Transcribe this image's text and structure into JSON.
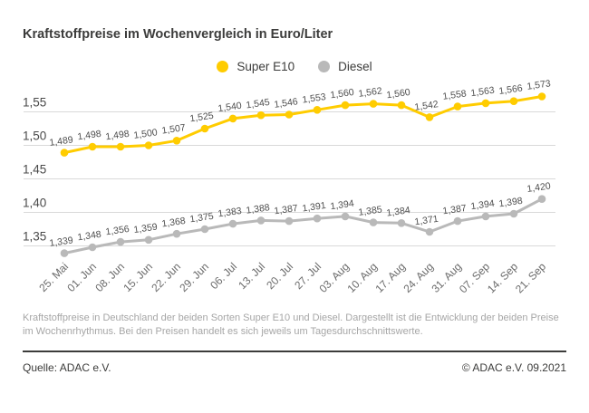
{
  "title": "Kraftstoffpreise im Wochenvergleich in Euro/Liter",
  "legend": [
    {
      "label": "Super E10",
      "color": "#FFCC00"
    },
    {
      "label": "Diesel",
      "color": "#B9B9B9"
    }
  ],
  "chart_data": {
    "type": "line",
    "title": "Kraftstoffpreise im Wochenvergleich in Euro/Liter",
    "unit": "Euro/Liter",
    "x": [
      "25. Mai",
      "01. Jun",
      "08. Jun",
      "15. Jun",
      "22. Jun",
      "29. Jun",
      "06. Jul",
      "13. Jul",
      "20. Jul",
      "27. Jul",
      "03. Aug",
      "10. Aug",
      "17. Aug",
      "24. Aug",
      "31. Aug",
      "07. Sep",
      "14. Sep",
      "21. Sep"
    ],
    "series": [
      {
        "name": "Super E10",
        "color": "#FFCC00",
        "values": [
          1.489,
          1.498,
          1.498,
          1.5,
          1.507,
          1.525,
          1.54,
          1.545,
          1.546,
          1.553,
          1.56,
          1.562,
          1.56,
          1.542,
          1.558,
          1.563,
          1.566,
          1.573
        ]
      },
      {
        "name": "Diesel",
        "color": "#B9B9B9",
        "values": [
          1.339,
          1.348,
          1.356,
          1.359,
          1.368,
          1.375,
          1.383,
          1.388,
          1.387,
          1.391,
          1.394,
          1.385,
          1.384,
          1.371,
          1.387,
          1.394,
          1.398,
          1.42
        ]
      }
    ],
    "yticks": [
      {
        "value": 1.55,
        "label": "1,55"
      },
      {
        "value": 1.5,
        "label": "1,50"
      },
      {
        "value": 1.45,
        "label": "1,45"
      },
      {
        "value": 1.4,
        "label": "1,40"
      },
      {
        "value": 1.35,
        "label": "1,35"
      }
    ],
    "ylim": [
      1.33,
      1.58
    ],
    "grid": "horizontal",
    "legend_position": "top-center",
    "value_labels": true,
    "decimal_separator": ","
  },
  "caption": "Kraftstoffpreise in Deutschland der beiden Sorten Super E10 und Diesel. Dargestellt ist die Entwicklung der beiden Preise im Wochenrhythmus. Bei den Preisen handelt es sich jeweils um Tagesdurchschnittswerte.",
  "footer": {
    "source": "Quelle: ADAC e.V.",
    "copyright": "© ADAC e.V. 09.2021"
  }
}
